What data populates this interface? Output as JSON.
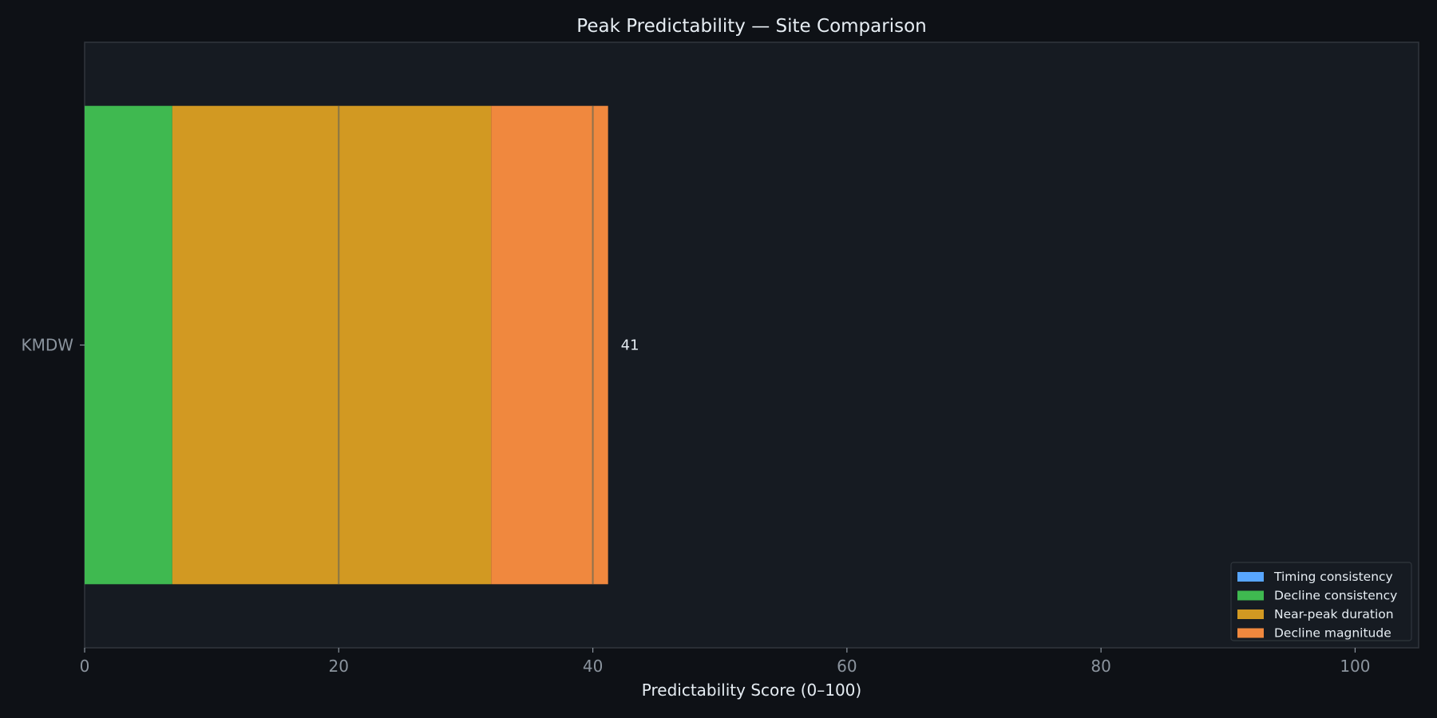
{
  "chart_data": {
    "type": "bar",
    "orientation": "horizontal",
    "stacked": true,
    "title": "Peak Predictability — Site Comparison",
    "xlabel": "Predictability Score (0–100)",
    "ylabel": "",
    "xlim": [
      0,
      105
    ],
    "xticks": [
      0,
      20,
      40,
      60,
      80,
      100
    ],
    "grid": false,
    "categories": [
      "KMDW"
    ],
    "series": [
      {
        "name": "Timing consistency",
        "color": "#58a6ff",
        "values": [
          0
        ]
      },
      {
        "name": "Decline consistency",
        "color": "#3fb950",
        "values": [
          6.9
        ]
      },
      {
        "name": "Near-peak duration",
        "color": "#d29922",
        "values": [
          25.1
        ]
      },
      {
        "name": "Decline magnitude",
        "color": "#f0883e",
        "values": [
          9.2
        ]
      }
    ],
    "total_labels": [
      "41"
    ],
    "reference_lines": [
      20,
      40
    ],
    "legend_position": "lower-right"
  },
  "colors": {
    "background": "#0e1116",
    "plot_background": "#161b22",
    "axis": "#30363d",
    "tick_text": "#8b949e",
    "text": "#e6edf3"
  }
}
